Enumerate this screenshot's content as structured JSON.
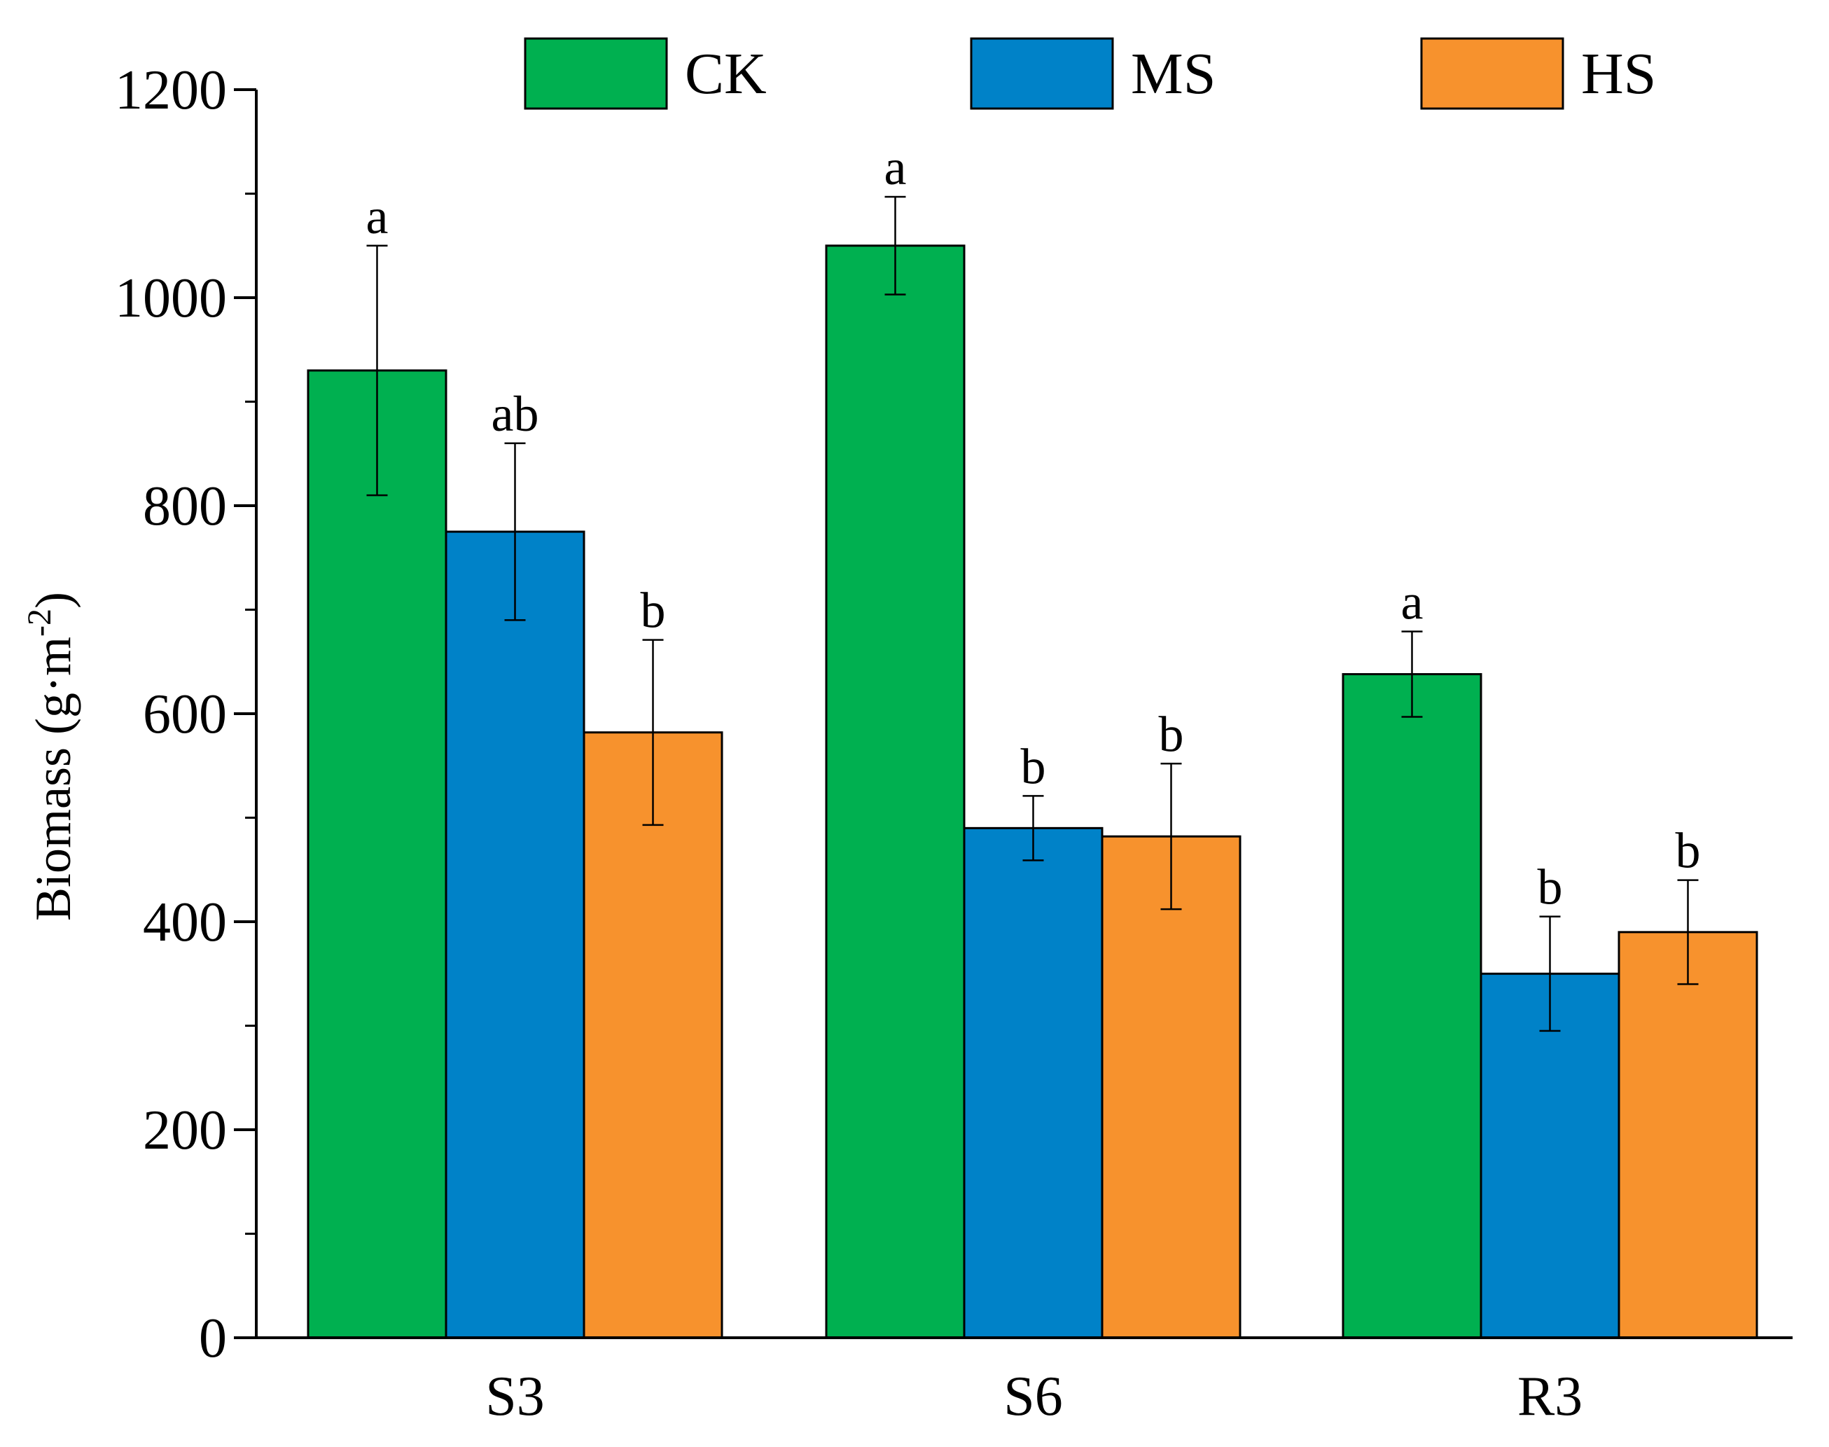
{
  "chart_data": {
    "type": "bar",
    "title": "",
    "xlabel": "",
    "ylabel": "Biomass (g·m",
    "ylabel_sup": "-2",
    "ylabel_close": ")",
    "ylim": [
      0,
      1200
    ],
    "yticks": [
      0,
      200,
      400,
      600,
      800,
      1000,
      1200
    ],
    "ytick_labels": [
      "0",
      "200",
      "400",
      "600",
      "800",
      "1000",
      "1200"
    ],
    "categories": [
      "S3",
      "S6",
      "R3"
    ],
    "legend_position": "top",
    "series": [
      {
        "name": "CK",
        "color": "#00B050",
        "values": [
          930,
          1050,
          638
        ],
        "errors": [
          120,
          47,
          41
        ],
        "letters": [
          "a",
          "a",
          "a"
        ]
      },
      {
        "name": "MS",
        "color": "#0082C8",
        "values": [
          775,
          490,
          350
        ],
        "errors": [
          85,
          31,
          55
        ],
        "letters": [
          "ab",
          "b",
          "b"
        ]
      },
      {
        "name": "HS",
        "color": "#F7922D",
        "values": [
          582,
          482,
          390
        ],
        "errors": [
          89,
          70,
          50
        ],
        "letters": [
          "b",
          "b",
          "b"
        ]
      }
    ]
  }
}
